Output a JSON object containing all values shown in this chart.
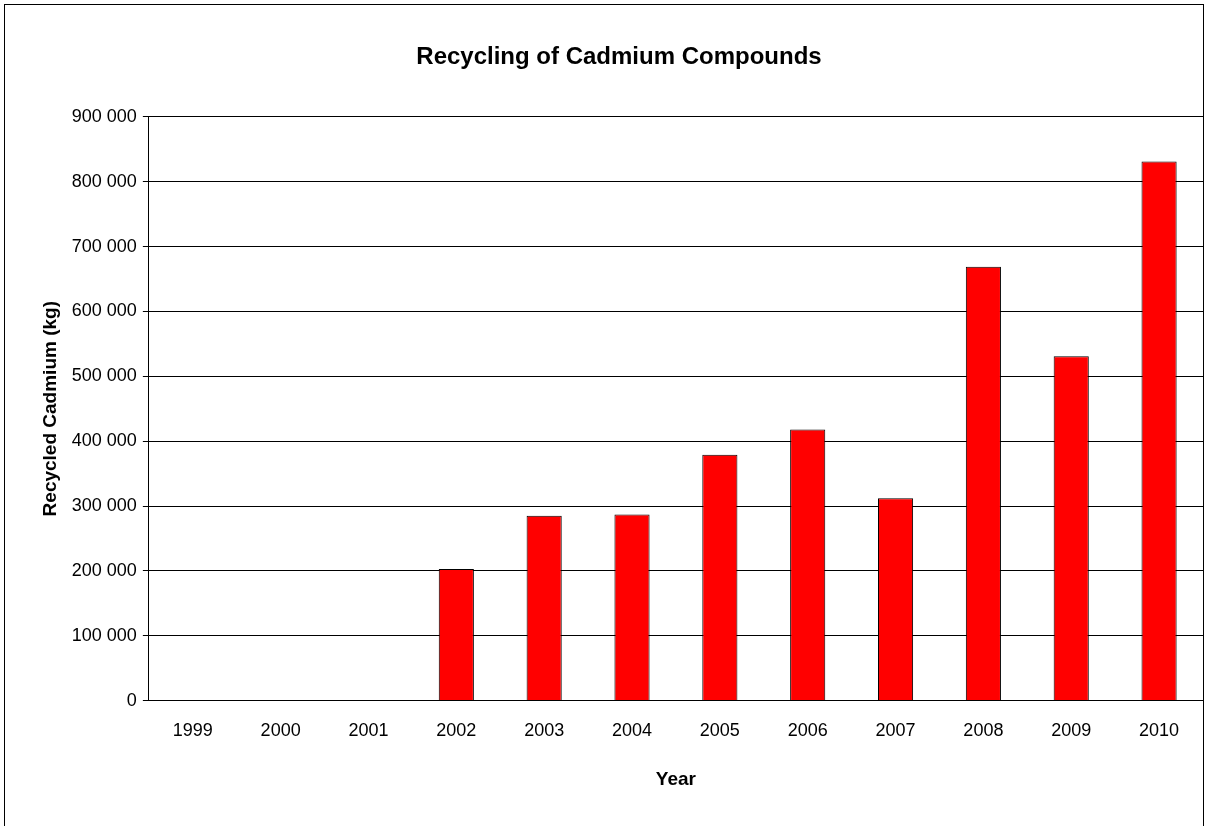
{
  "chart_data": {
    "type": "bar",
    "title": "Recycling of Cadmium Compounds",
    "xlabel": "Year",
    "ylabel": "Recycled Cadmium (kg)",
    "categories": [
      "1999",
      "2000",
      "2001",
      "2002",
      "2003",
      "2004",
      "2005",
      "2006",
      "2007",
      "2008",
      "2009",
      "2010"
    ],
    "values": [
      null,
      null,
      null,
      203000,
      285000,
      287000,
      379000,
      418000,
      312000,
      669000,
      531000,
      831000
    ],
    "color": "#ff0000",
    "ylim": [
      0,
      900000
    ],
    "yticks": [
      {
        "value": 0,
        "label": "0"
      },
      {
        "value": 100000,
        "label": "100 000"
      },
      {
        "value": 200000,
        "label": "200 000"
      },
      {
        "value": 300000,
        "label": "300 000"
      },
      {
        "value": 400000,
        "label": "400 000"
      },
      {
        "value": 500000,
        "label": "500 000"
      },
      {
        "value": 600000,
        "label": "600 000"
      },
      {
        "value": 700000,
        "label": "700 000"
      },
      {
        "value": 800000,
        "label": "800 000"
      },
      {
        "value": 900000,
        "label": "900 000"
      }
    ],
    "grid": "y",
    "legend": false
  }
}
